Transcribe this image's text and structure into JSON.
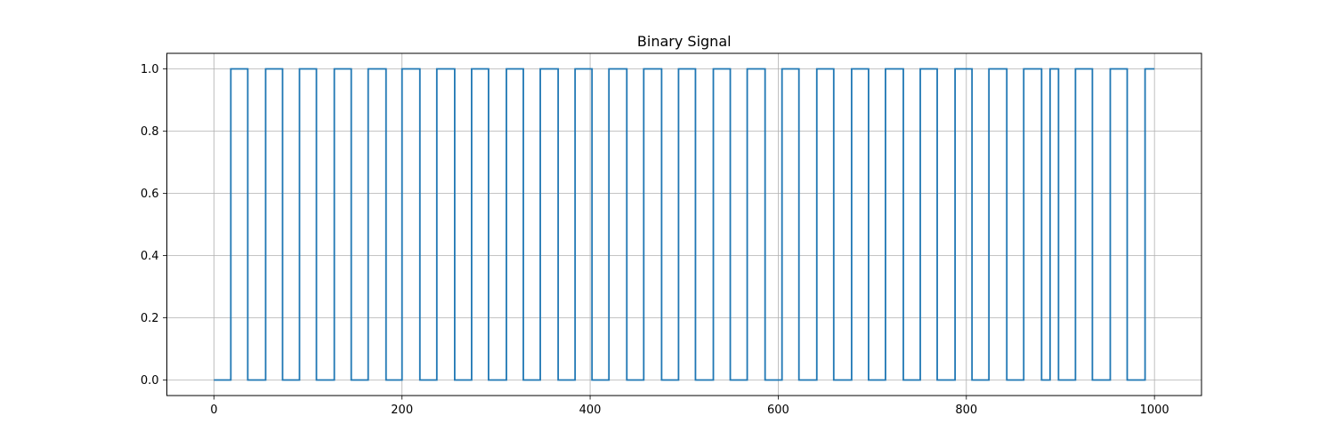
{
  "chart_data": {
    "type": "line",
    "title": "Binary Signal",
    "xlabel": "",
    "ylabel": "",
    "xlim": [
      -50,
      1050
    ],
    "ylim": [
      -0.05,
      1.05
    ],
    "x_ticks": [
      0,
      200,
      400,
      600,
      800,
      1000
    ],
    "y_ticks": [
      0.0,
      0.2,
      0.4,
      0.6,
      0.8,
      1.0
    ],
    "x_tick_labels": [
      "0",
      "200",
      "400",
      "600",
      "800",
      "1000"
    ],
    "y_tick_labels": [
      "0.0",
      "0.2",
      "0.4",
      "0.6",
      "0.8",
      "1.0"
    ],
    "grid": true,
    "step_mode": "post",
    "series": [
      {
        "color": "#1f77b4",
        "x": [
          0,
          18,
          36,
          55,
          73,
          91,
          109,
          128,
          146,
          164,
          183,
          200,
          219,
          237,
          256,
          274,
          292,
          311,
          329,
          347,
          366,
          384,
          402,
          420,
          439,
          457,
          476,
          494,
          512,
          531,
          549,
          567,
          586,
          604,
          622,
          641,
          659,
          678,
          696,
          714,
          733,
          751,
          769,
          788,
          806,
          824,
          843,
          861,
          880,
          889,
          898,
          916,
          934,
          953,
          971,
          990,
          1000
        ],
        "values": [
          0,
          1,
          0,
          1,
          0,
          1,
          0,
          1,
          0,
          1,
          0,
          1,
          0,
          1,
          0,
          1,
          0,
          1,
          0,
          1,
          0,
          1,
          0,
          1,
          0,
          1,
          0,
          1,
          0,
          1,
          0,
          1,
          0,
          1,
          0,
          1,
          0,
          1,
          0,
          1,
          0,
          1,
          0,
          1,
          0,
          1,
          0,
          1,
          0,
          1,
          0,
          1,
          0,
          1,
          0,
          1,
          1
        ]
      }
    ]
  }
}
